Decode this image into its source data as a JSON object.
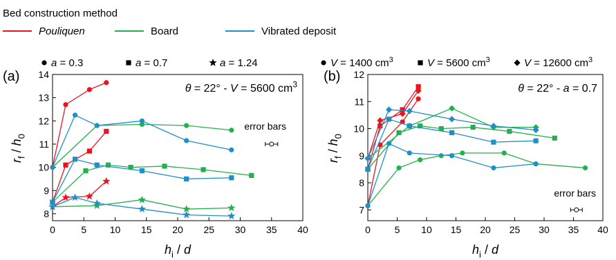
{
  "legend": {
    "title": "Bed construction method",
    "methods": [
      {
        "name": "Pouliquen",
        "color": "#e8141e",
        "italic": true
      },
      {
        "name": "Board",
        "color": "#22b14c",
        "italic": false
      },
      {
        "name": "Vibrated deposit",
        "color": "#1f8fc8",
        "italic": false
      }
    ]
  },
  "chart_data": [
    {
      "type": "line",
      "panel_label": "(a)",
      "condition": "θ = 22° - V = 5600 cm3",
      "marker_legend": [
        {
          "marker": "circle",
          "label": "a = 0.3"
        },
        {
          "marker": "square",
          "label": "a = 0.7"
        },
        {
          "marker": "star",
          "label": "a = 1.24"
        }
      ],
      "xlabel": "hi / d",
      "ylabel": "rf / h0",
      "xlim": [
        0,
        40
      ],
      "ylim": [
        7.7,
        14
      ],
      "xticks": [
        0,
        5,
        10,
        15,
        20,
        25,
        30,
        35,
        40
      ],
      "yticks": [
        8,
        9,
        10,
        11,
        12,
        13,
        14
      ],
      "grid": false,
      "annotation": "error bars",
      "error_bar": {
        "x": 35,
        "y": 11.0,
        "xerr": 1.0
      },
      "series": [
        {
          "name": "Pouliquen, a = 0.3",
          "method": "Pouliquen",
          "marker": "circle",
          "x": [
            0,
            2.1,
            5.9,
            8.6
          ],
          "y": [
            10.0,
            12.7,
            13.35,
            13.65
          ]
        },
        {
          "name": "Pouliquen, a = 0.7",
          "method": "Pouliquen",
          "marker": "square",
          "x": [
            0,
            2.1,
            5.9,
            8.6
          ],
          "y": [
            8.5,
            10.1,
            10.7,
            11.55
          ]
        },
        {
          "name": "Pouliquen, a = 1.24",
          "method": "Pouliquen",
          "marker": "star",
          "x": [
            0,
            2.1,
            5.9,
            8.6
          ],
          "y": [
            8.3,
            8.7,
            8.75,
            9.4
          ]
        },
        {
          "name": "Board, a = 0.3",
          "method": "Board",
          "marker": "circle",
          "x": [
            0,
            7.1,
            14.3,
            21.4,
            28.6
          ],
          "y": [
            10.0,
            11.8,
            11.85,
            11.8,
            11.6
          ]
        },
        {
          "name": "Board, a = 0.7",
          "method": "Board",
          "marker": "square",
          "x": [
            0,
            5.3,
            8.9,
            12.5,
            17.9,
            24.1,
            31.8
          ],
          "y": [
            8.5,
            9.85,
            10.1,
            10.0,
            10.05,
            9.9,
            9.65
          ]
        },
        {
          "name": "Board, a = 1.24",
          "method": "Board",
          "marker": "star",
          "x": [
            0,
            7.1,
            14.3,
            21.4,
            28.6
          ],
          "y": [
            8.3,
            8.35,
            8.6,
            8.2,
            8.25
          ]
        },
        {
          "name": "Vibrated deposit, a = 0.3",
          "method": "Vibrated deposit",
          "marker": "circle",
          "x": [
            0,
            3.6,
            7.1,
            14.3,
            21.4,
            28.6
          ],
          "y": [
            10.0,
            12.25,
            11.8,
            12.0,
            11.15,
            10.75
          ]
        },
        {
          "name": "Vibrated deposit, a = 0.7",
          "method": "Vibrated deposit",
          "marker": "square",
          "x": [
            0,
            3.6,
            7.1,
            14.3,
            21.4,
            28.6
          ],
          "y": [
            8.5,
            10.35,
            10.1,
            9.85,
            9.5,
            9.55
          ]
        },
        {
          "name": "Vibrated deposit, a = 1.24",
          "method": "Vibrated deposit",
          "marker": "star",
          "x": [
            0,
            3.6,
            7.1,
            14.3,
            21.4,
            28.6
          ],
          "y": [
            8.3,
            8.7,
            8.45,
            8.2,
            7.95,
            7.9
          ]
        }
      ]
    },
    {
      "type": "line",
      "panel_label": "(b)",
      "condition": "θ = 22° - a = 0.7",
      "marker_legend": [
        {
          "marker": "circle",
          "label": "V = 1400 cm3"
        },
        {
          "marker": "square",
          "label": "V = 5600 cm3"
        },
        {
          "marker": "diamond",
          "label": "V = 12600 cm3"
        }
      ],
      "xlabel": "hi / d",
      "ylabel": "rf / h0",
      "xlim": [
        0,
        40
      ],
      "ylim": [
        6.6,
        12
      ],
      "xticks": [
        0,
        5,
        10,
        15,
        20,
        25,
        30,
        35,
        40
      ],
      "yticks": [
        7,
        8,
        9,
        10,
        11,
        12
      ],
      "grid": false,
      "annotation": "error bars",
      "error_bar": {
        "x": 35.5,
        "y": 7.0,
        "xerr": 1.0
      },
      "series": [
        {
          "name": "Pouliquen, V = 1400 cm3",
          "method": "Pouliquen",
          "marker": "circle",
          "x": [
            0,
            2.1,
            5.9,
            8.6
          ],
          "y": [
            7.15,
            9.4,
            10.25,
            11.1
          ]
        },
        {
          "name": "Pouliquen, V = 5600 cm3",
          "method": "Pouliquen",
          "marker": "square",
          "x": [
            0,
            2.1,
            5.9,
            8.6
          ],
          "y": [
            8.5,
            10.1,
            10.7,
            11.55
          ]
        },
        {
          "name": "Pouliquen, V = 12600 cm3",
          "method": "Pouliquen",
          "marker": "diamond",
          "x": [
            0,
            2.1,
            5.9,
            8.6
          ],
          "y": [
            8.9,
            10.3,
            10.55,
            11.4
          ]
        },
        {
          "name": "Board, V = 1400 cm3",
          "method": "Board",
          "marker": "circle",
          "x": [
            0,
            5.3,
            8.9,
            12.5,
            16.1,
            23.2,
            28.6,
            37.0
          ],
          "y": [
            7.15,
            8.55,
            8.85,
            9.0,
            9.1,
            9.1,
            8.7,
            8.55
          ]
        },
        {
          "name": "Board, V = 5600 cm3",
          "method": "Board",
          "marker": "square",
          "x": [
            0,
            5.3,
            8.9,
            12.5,
            17.9,
            24.1,
            31.8
          ],
          "y": [
            8.5,
            9.85,
            10.1,
            10.0,
            10.05,
            9.9,
            9.65
          ]
        },
        {
          "name": "Board, V = 12600 cm3",
          "method": "Board",
          "marker": "diamond",
          "x": [
            0,
            7.1,
            14.3,
            21.4,
            28.6
          ],
          "y": [
            8.9,
            10.1,
            10.75,
            10.05,
            10.05
          ]
        },
        {
          "name": "Vibrated deposit, V = 1400 cm3",
          "method": "Vibrated deposit",
          "marker": "circle",
          "x": [
            0,
            3.6,
            7.1,
            14.3,
            21.4,
            28.6
          ],
          "y": [
            7.15,
            9.45,
            9.1,
            9.0,
            8.55,
            8.7
          ]
        },
        {
          "name": "Vibrated deposit, V = 5600 cm3",
          "method": "Vibrated deposit",
          "marker": "square",
          "x": [
            0,
            3.6,
            7.1,
            14.3,
            21.4,
            28.6
          ],
          "y": [
            8.5,
            10.35,
            10.1,
            9.85,
            9.5,
            9.55
          ]
        },
        {
          "name": "Vibrated deposit, V = 12600 cm3",
          "method": "Vibrated deposit",
          "marker": "diamond",
          "x": [
            0,
            3.6,
            7.1,
            14.3,
            21.4,
            28.6
          ],
          "y": [
            8.9,
            10.7,
            10.65,
            10.35,
            10.1,
            9.95
          ]
        }
      ]
    }
  ]
}
